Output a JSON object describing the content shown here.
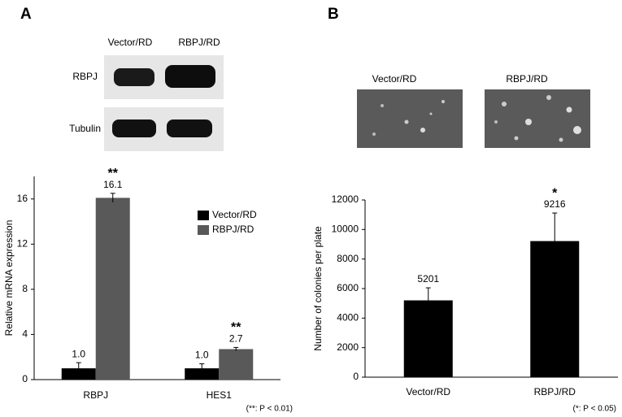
{
  "figure": {
    "panel_a": "A",
    "panel_b": "B",
    "blot": {
      "columns": [
        "Vector/RD",
        "RBPJ/RD"
      ],
      "rows": [
        "RBPJ",
        "Tubulin"
      ]
    },
    "micrographs": {
      "labels": [
        "Vector/RD",
        "RBPJ/RD"
      ]
    }
  },
  "chart_data": [
    {
      "type": "bar",
      "ylabel": "Relative mRNA expression",
      "categories": [
        "RBPJ",
        "HES1"
      ],
      "series": [
        {
          "name": "Vector/RD",
          "color": "#000000",
          "values": [
            1.0,
            1.0
          ],
          "value_labels": [
            "1.0",
            "1.0"
          ],
          "errors": [
            0.5,
            0.4
          ]
        },
        {
          "name": "RBPJ/RD",
          "color": "#595959",
          "values": [
            16.1,
            2.7
          ],
          "value_labels": [
            "16.1",
            "2.7"
          ],
          "errors": [
            0.4,
            0.15
          ],
          "significance": [
            "**",
            "**"
          ]
        }
      ],
      "ylim": [
        0,
        18
      ],
      "yticks": [
        0,
        4,
        8,
        12,
        16
      ],
      "legend": "right",
      "footnote": "(**: P < 0.01)"
    },
    {
      "type": "bar",
      "ylabel": "Number of colonies per plate",
      "categories": [
        "Vector/RD",
        "RBPJ/RD"
      ],
      "values": [
        5201,
        9216
      ],
      "errors": [
        850,
        1900
      ],
      "significance": [
        null,
        "*"
      ],
      "color": "#000000",
      "ylim": [
        0,
        12000
      ],
      "yticks": [
        0,
        2000,
        4000,
        6000,
        8000,
        10000,
        12000
      ],
      "footnote": "(*: P < 0.05)"
    }
  ]
}
